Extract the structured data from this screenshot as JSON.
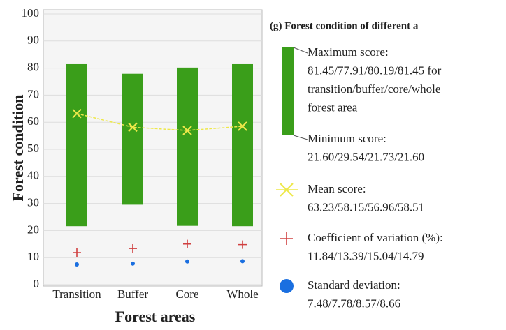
{
  "chart_data": {
    "type": "range_bar",
    "title": "(g) Forest condition of different a",
    "xlabel": "Forest areas",
    "ylabel": "Forest condition",
    "categories": [
      "Transition",
      "Buffer",
      "Core",
      "Whole"
    ],
    "ylim": [
      0,
      100
    ],
    "yticks": [
      0,
      10,
      20,
      30,
      40,
      50,
      60,
      70,
      80,
      90,
      100
    ],
    "grid": true,
    "series": [
      {
        "name": "Maximum score:",
        "detail": [
          "81.45/77.91/80.19/81.45 for",
          "transition/buffer/core/whole",
          "forest area"
        ],
        "color": "#3a9e1a",
        "values": [
          81.45,
          77.91,
          80.19,
          81.45
        ]
      },
      {
        "name": "Minimum score:",
        "detail": [
          "21.60/29.54/21.73/21.60"
        ],
        "color": "#3a9e1a",
        "values": [
          21.6,
          29.54,
          21.73,
          21.6
        ]
      },
      {
        "name": "Mean score:",
        "detail": [
          "63.23/58.15/56.96/58.51"
        ],
        "color": "#eee84a",
        "marker": "x",
        "values": [
          63.23,
          58.15,
          56.96,
          58.51
        ]
      },
      {
        "name": "Coefficient of variation (%):",
        "detail": [
          "11.84/13.39/15.04/14.79"
        ],
        "color": "#d04040",
        "marker": "plus",
        "values": [
          11.84,
          13.39,
          15.04,
          14.79
        ]
      },
      {
        "name": "Standard deviation:",
        "detail": [
          "7.48/7.78/8.57/8.66"
        ],
        "color": "#1a6fe0",
        "marker": "dot",
        "values": [
          7.48,
          7.78,
          8.57,
          8.66
        ]
      }
    ]
  }
}
